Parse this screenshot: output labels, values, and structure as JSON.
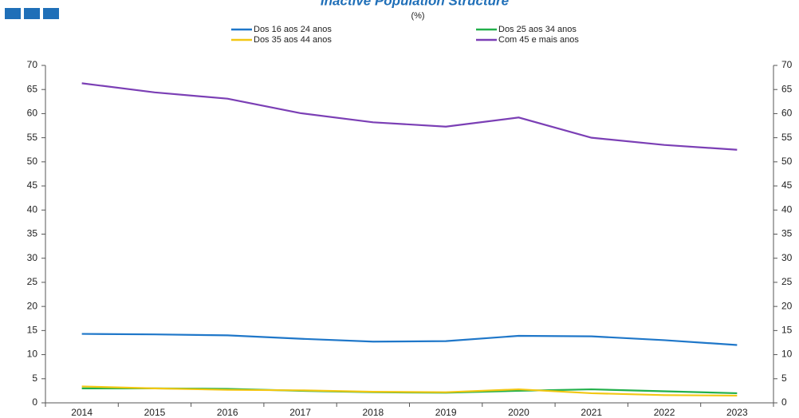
{
  "chart_data": {
    "type": "line",
    "title": "Inactive Population Structure",
    "subtitle": "(%)",
    "categories": [
      "2014",
      "2015",
      "2016",
      "2017",
      "2018",
      "2019",
      "2020",
      "2021",
      "2022",
      "2023"
    ],
    "series": [
      {
        "name": "Dos 16 aos 24 anos",
        "color": "#1f77c9",
        "values": [
          14.3,
          14.2,
          14.0,
          13.3,
          12.7,
          12.8,
          13.9,
          13.8,
          13.0,
          12.0
        ]
      },
      {
        "name": "Dos 25 aos 34 anos",
        "color": "#22b04b",
        "values": [
          3.0,
          3.0,
          2.9,
          2.5,
          2.2,
          2.1,
          2.5,
          2.8,
          2.4,
          2.0
        ]
      },
      {
        "name": "Dos 35 aos 44 anos",
        "color": "#f2c713",
        "values": [
          3.4,
          3.0,
          2.7,
          2.6,
          2.3,
          2.2,
          2.8,
          2.0,
          1.6,
          1.5
        ]
      },
      {
        "name": "Com 45 e mais anos",
        "color": "#7b3fb5",
        "values": [
          66.3,
          64.4,
          63.1,
          60.1,
          58.2,
          57.3,
          59.2,
          55.0,
          53.5,
          52.5
        ]
      }
    ],
    "ylim": [
      0,
      70
    ],
    "yticks": [
      0,
      5,
      10,
      15,
      20,
      25,
      30,
      35,
      40,
      45,
      50,
      55,
      60,
      65,
      70
    ],
    "y2lim": [
      0,
      70
    ],
    "y2ticks": [
      0,
      5,
      10,
      15,
      20,
      25,
      30,
      35,
      40,
      45,
      50,
      55,
      60,
      65,
      70
    ]
  }
}
